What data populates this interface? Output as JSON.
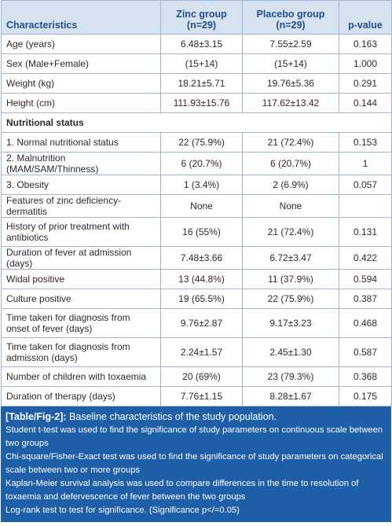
{
  "table": {
    "headers": {
      "characteristics": "Characteristics",
      "zinc_line1": "Zinc group",
      "zinc_line2": "(n=29)",
      "placebo_line1": "Placebo group",
      "placebo_line2": "(n=29)",
      "pvalue": "p-value"
    },
    "rows_top": [
      {
        "label": "Age (years)",
        "zinc": "6.48±3.15",
        "placebo": "7.55±2.59",
        "p": "0.163"
      },
      {
        "label": "Sex (Male+Female)",
        "zinc": "(15+14)",
        "placebo": "(15+14)",
        "p": "1.000"
      },
      {
        "label": "Weight (kg)",
        "zinc": "18.21±5.71",
        "placebo": "19.76±5.36",
        "p": "0.291"
      },
      {
        "label": "Height (cm)",
        "zinc": "111.93±15.76",
        "placebo": "117.62±13.42",
        "p": "0.144"
      }
    ],
    "section_nutritional": "Nutritional status",
    "rows_bottom": [
      {
        "label": "1. Normal nutritional status",
        "zinc": "22 (75.9%)",
        "placebo": "21 (72.4%)",
        "p": "0.153"
      },
      {
        "label": "2. Malnutrition (MAM/SAM/Thinness)",
        "zinc": "6 (20.7%)",
        "placebo": "6 (20.7%)",
        "p": "1"
      },
      {
        "label": "3. Obesity",
        "zinc": "1 (3.4%)",
        "placebo": "2 (6.9%)",
        "p": "0.057"
      },
      {
        "label": "Features of zinc deficiency- dermatitis",
        "zinc": "None",
        "placebo": "None",
        "p": ""
      },
      {
        "label": "History of prior treatment with antibiotics",
        "zinc": "16 (55%)",
        "placebo": "21 (72.4%)",
        "p": "0.131"
      },
      {
        "label": "Duration of fever at admission (days)",
        "zinc": "7.48±3.66",
        "placebo": "6.72±3.47",
        "p": "0.422"
      },
      {
        "label": "Widal positive",
        "zinc": "13 (44.8%)",
        "placebo": "11 (37.9%)",
        "p": "0.594"
      },
      {
        "label": "Culture positive",
        "zinc": "19 (65.5%)",
        "placebo": "22 (75.9%)",
        "p": "0.387"
      },
      {
        "label": "Time taken for diagnosis from onset of fever (days)",
        "zinc": "9.76±2.87",
        "placebo": "9.17±3.23",
        "p": "0.468"
      },
      {
        "label": "Time taken for diagnosis from admission (days)",
        "zinc": "2.24±1.57",
        "placebo": "2.45±1.30",
        "p": "0.587"
      },
      {
        "label": "Number of children with toxaemia",
        "zinc": "20 (69%)",
        "placebo": "23 (79.3%)",
        "p": "0.368"
      },
      {
        "label": "Duration of therapy (days)",
        "zinc": "7.76±1.15",
        "placebo": "8.28±1.67",
        "p": "0.175"
      }
    ]
  },
  "caption": {
    "label": "[Table/Fig-2]:",
    "title": "Baseline characteristics of the study population.",
    "notes": [
      "Student t-test was used to find the significance of study parameters on continuous scale between two groups",
      "Chi-square/Fisher-Exact test was used to find the significance of study parameters on categorical scale between two or more groups",
      "Kaplan-Meier survival analysis was used to compare differences in the time to resolution of toxaemia and defervescence of fever between the two groups",
      "Log-rank test to test for significance. (Significance p</=0.05)"
    ]
  },
  "colors": {
    "header_bg": "#d7e2f1",
    "header_text": "#1f4e8c",
    "border": "#9db6d6",
    "caption_bg": "#1f5fa8"
  }
}
